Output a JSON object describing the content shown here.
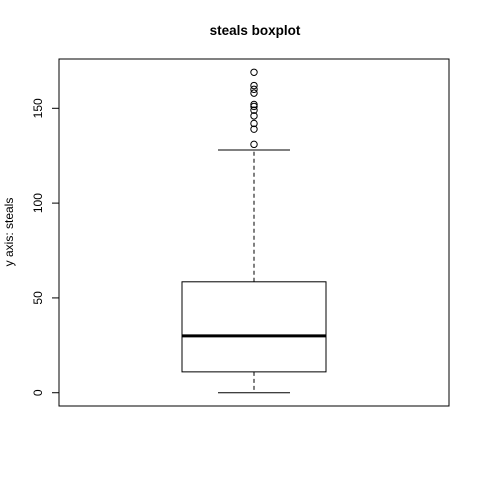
{
  "chart_data": {
    "type": "boxplot",
    "title": "steals boxplot",
    "xlabel": "",
    "ylabel": "y axis: steals",
    "ylim": [
      -7,
      176
    ],
    "yticks": [
      0,
      50,
      100,
      150
    ],
    "ytick_labels": [
      "0",
      "50",
      "100",
      "150"
    ],
    "box": {
      "min": 0,
      "q1": 11,
      "median": 30,
      "q3": 58.5,
      "whisker_high": 128
    },
    "outliers": [
      131,
      139,
      142,
      146,
      149,
      151,
      152,
      158,
      160,
      162,
      169
    ],
    "grid": false,
    "legend": "none",
    "colors": {
      "stroke": "#000000",
      "background": "#ffffff"
    }
  }
}
